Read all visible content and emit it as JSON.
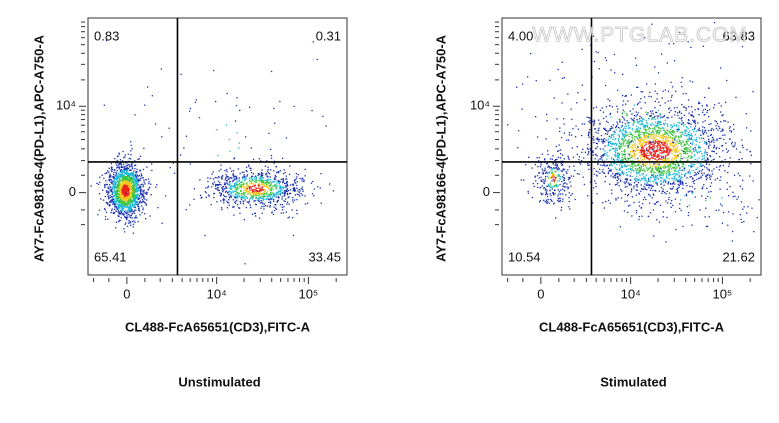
{
  "chart_data": [
    {
      "type": "flow-quadrant",
      "title": "Unstimulated",
      "x_label": "CL488-FcA65651(CD3),FITC-A",
      "y_label": "AY7-FcA98166-4(PD-L1),APC-A750-A",
      "xscale": "logicle",
      "yscale": "logicle",
      "xlim": [
        -2430,
        262144
      ],
      "ylim": [
        -9000,
        100000
      ],
      "xticks": [
        0,
        {
          "value": 10000,
          "label": "10⁴"
        },
        {
          "value": 100000,
          "label": "10⁵"
        }
      ],
      "yticks": [
        0,
        {
          "value": 10000,
          "label": "10⁴"
        }
      ],
      "gate": {
        "x": 3500,
        "y": 1900
      },
      "values": [
        0.83,
        0.31,
        65.41,
        33.45
      ],
      "value_labels": [
        "0.83",
        "0.31",
        "65.41",
        "33.45"
      ]
    },
    {
      "type": "flow-quadrant",
      "title": "Stimulated",
      "x_label": "CL488-FcA65651(CD3),FITC-A",
      "y_label": "AY7-FcA98166-4(PD-L1),APC-A750-A",
      "xscale": "logicle",
      "yscale": "logicle",
      "xlim": [
        -2430,
        262144
      ],
      "ylim": [
        -9000,
        100000
      ],
      "xticks": [
        0,
        {
          "value": 10000,
          "label": "10⁴"
        },
        {
          "value": 100000,
          "label": "10⁵"
        }
      ],
      "yticks": [
        0,
        {
          "value": 10000,
          "label": "10⁴"
        }
      ],
      "gate": {
        "x": 3500,
        "y": 1900
      },
      "values": [
        4,
        63.83,
        10.54,
        21.62
      ],
      "value_labels": [
        "4.00",
        "63.83",
        "10.54",
        "21.62"
      ]
    }
  ],
  "watermark": "WWW.PTGLAB.COM"
}
